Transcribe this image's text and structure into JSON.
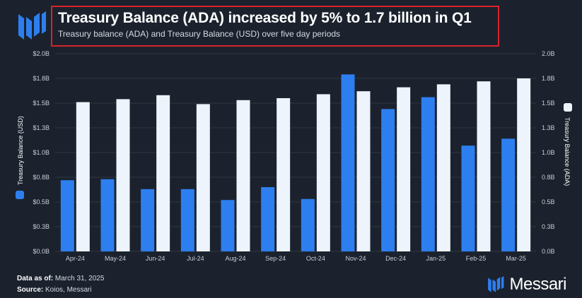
{
  "header": {
    "title": "Treasury Balance (ADA) increased by 5% to 1.7 billion in Q1",
    "subtitle": "Treasury balance (ADA) and Treasury Balance (USD) over five day periods"
  },
  "footer": {
    "data_as_of_label": "Data as of:",
    "data_as_of_value": "March 31, 2025",
    "source_label": "Source:",
    "source_value": "Koios, Messari",
    "brand": "Messari"
  },
  "colors": {
    "background": "#1b222d",
    "usd_bar": "#2d7ff0",
    "ada_bar": "#eef4fb",
    "title_border": "#d8232a"
  },
  "chart_data": {
    "type": "bar",
    "title": "Treasury Balance (ADA) increased by 5% to 1.7 billion in Q1",
    "categories": [
      "Apr-24",
      "May-24",
      "Jun-24",
      "Jul-24",
      "Aug-24",
      "Sep-24",
      "Oct-24",
      "Nov-24",
      "Dec-24",
      "Jan-25",
      "Feb-25",
      "Mar-25"
    ],
    "series": [
      {
        "name": "Treasury Balance (USD)",
        "axis": "left",
        "values": [
          0.72,
          0.73,
          0.63,
          0.63,
          0.52,
          0.65,
          0.53,
          1.79,
          1.44,
          1.56,
          1.07,
          1.14
        ]
      },
      {
        "name": "Treasury Balance (ADA)",
        "axis": "right",
        "values": [
          1.51,
          1.54,
          1.58,
          1.49,
          1.53,
          1.55,
          1.59,
          1.62,
          1.66,
          1.69,
          1.72,
          1.75
        ]
      }
    ],
    "ylabel_left": "Treasury Balance (USD)",
    "ylabel_right": "Treasury Balance (ADA)",
    "ylim_left": [
      0,
      2.0
    ],
    "ylim_right": [
      0,
      2.0
    ],
    "yticks_left": [
      "$0.0B",
      "$0.3B",
      "$0.5B",
      "$0.8B",
      "$1.0B",
      "$1.3B",
      "$1.5B",
      "$1.8B",
      "$2.0B"
    ],
    "yticks_right": [
      "0.0B",
      "0.3B",
      "0.5B",
      "0.8B",
      "1.0B",
      "1.3B",
      "1.5B",
      "1.8B",
      "2.0B"
    ],
    "grid": true,
    "legend": "axis-labels"
  }
}
